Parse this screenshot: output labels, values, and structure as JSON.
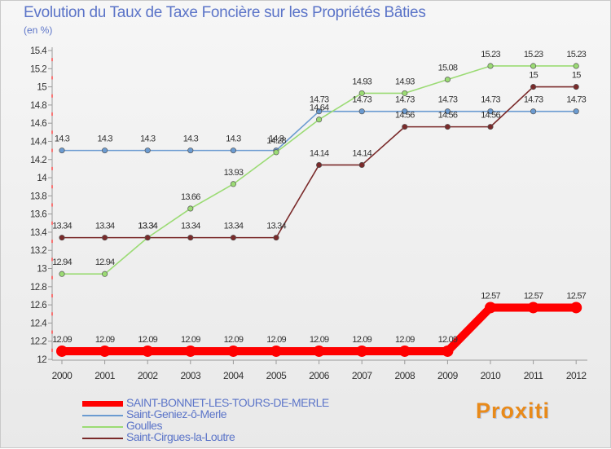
{
  "title": "Evolution du Taux de Taxe Foncière sur les Propriétés Bâties",
  "unit_label": "(en %)",
  "logo": "Proxiti",
  "chart_data": {
    "type": "line",
    "categories": [
      "2000",
      "2001",
      "2002",
      "2003",
      "2004",
      "2005",
      "2006",
      "2007",
      "2008",
      "2009",
      "2010",
      "2011",
      "2012"
    ],
    "ylim": [
      12,
      15.4
    ],
    "yticks": [
      "12",
      "12.2",
      "12.4",
      "12.6",
      "12.8",
      "13",
      "13.2",
      "13.4",
      "13.6",
      "13.8",
      "14",
      "14.2",
      "14.4",
      "14.6",
      "14.8",
      "15",
      "15.2",
      "15.4"
    ],
    "series": [
      {
        "name": "SAINT-BONNET-LES-TOURS-DE-MERLE",
        "color": "#ff0000",
        "highlight": true,
        "values": [
          12.09,
          12.09,
          12.09,
          12.09,
          12.09,
          12.09,
          12.09,
          12.09,
          12.09,
          12.09,
          12.57,
          12.57,
          12.57
        ],
        "labels": [
          "12.09",
          "12.09",
          "12.09",
          "12.09",
          "12.09",
          "12.09",
          "12.09",
          "12.09",
          "12.09",
          "12.09",
          "12.57",
          "12.57",
          "12.57"
        ]
      },
      {
        "name": "Saint-Geniez-ô-Merle",
        "color": "#6b9bd1",
        "values": [
          14.3,
          14.3,
          14.3,
          14.3,
          14.3,
          14.3,
          14.73,
          14.73,
          14.73,
          14.73,
          14.73,
          14.73,
          14.73
        ],
        "labels": [
          "14.3",
          "14.3",
          "14.3",
          "14.3",
          "14.3",
          "14.3",
          "14.73",
          "14.73",
          "14.73",
          "14.73",
          "14.73",
          "14.73",
          "14.73"
        ]
      },
      {
        "name": "Goulles",
        "color": "#9bdb74",
        "values": [
          12.94,
          12.94,
          13.34,
          13.66,
          13.93,
          14.28,
          14.64,
          14.93,
          14.93,
          15.08,
          15.23,
          15.23,
          15.23
        ],
        "labels": [
          "12.94",
          "12.94",
          "13.34",
          "13.66",
          "13.93",
          "14.28",
          "14.64",
          "14.93",
          "14.93",
          "15.08",
          "15.23",
          "15.23",
          "15.23"
        ]
      },
      {
        "name": "Saint-Cirgues-la-Loutre",
        "color": "#7a2a2a",
        "values": [
          13.34,
          13.34,
          13.34,
          13.34,
          13.34,
          13.34,
          14.14,
          14.14,
          14.56,
          14.56,
          14.56,
          15,
          15
        ],
        "labels": [
          "13.34",
          "13.34",
          "13.34",
          "13.34",
          "13.34",
          "13.34",
          "14.14",
          "14.14",
          "14.56",
          "14.56",
          "14.56",
          "15",
          "15"
        ]
      }
    ]
  }
}
